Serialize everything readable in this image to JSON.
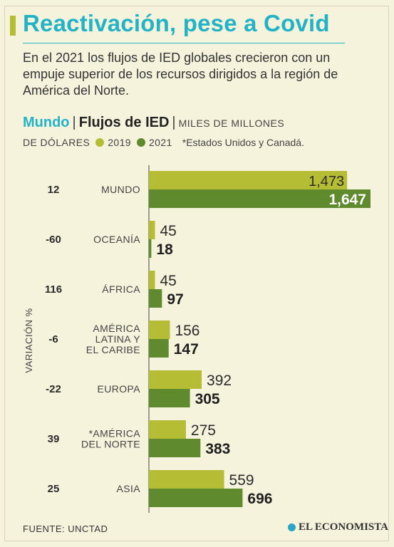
{
  "title": "Reactivación, pese a Covid",
  "subtitle": "En el 2021 los flujos de IED globales crecieron con un empuje superior de los recursos dirigidos a la región de América del Norte.",
  "heading": {
    "region": "Mundo",
    "separator": "|",
    "topic": "Flujos de IED",
    "units_line1": "MILES DE MILLONES",
    "units_line2": "DE DÓLARES"
  },
  "footnote": "*Estados Unidos y Canadá.",
  "source": "FUENTE: UNCTAD",
  "logo_text": "EL ECONOMISTA",
  "colors": {
    "accent": "#22b3c6",
    "series_2019": "#b5bd34",
    "series_2021": "#5f8a2d",
    "background": "#f6f3dd"
  },
  "chart_data": {
    "type": "bar",
    "orientation": "horizontal",
    "categories": [
      "MUNDO",
      "OCEANÍA",
      "ÁFRICA",
      "AMÉRICA LATINA Y EL CARIBE",
      "EUROPA",
      "*AMÉRICA DEL NORTE",
      "ASIA"
    ],
    "category_lines": [
      [
        "MUNDO"
      ],
      [
        "OCEANÍA"
      ],
      [
        "ÁFRICA"
      ],
      [
        "AMÉRICA",
        "LATINA Y",
        "EL CARIBE"
      ],
      [
        "EUROPA"
      ],
      [
        "*AMÉRICA",
        "DEL NORTE"
      ],
      [
        "ASIA"
      ]
    ],
    "series": [
      {
        "name": "2019",
        "values": [
          1473,
          45,
          45,
          156,
          392,
          275,
          559
        ],
        "labels": [
          "1,473",
          "45",
          "45",
          "156",
          "392",
          "275",
          "559"
        ]
      },
      {
        "name": "2021",
        "values": [
          1647,
          18,
          97,
          147,
          305,
          383,
          696
        ],
        "labels": [
          "1,647",
          "18",
          "97",
          "147",
          "305",
          "383",
          "696"
        ]
      }
    ],
    "variation_label": "VARIACIÓN %",
    "variation": [
      "12",
      "-60",
      "116",
      "-6",
      "-22",
      "39",
      "25"
    ],
    "legend_placement": "top-left",
    "grid": false
  }
}
